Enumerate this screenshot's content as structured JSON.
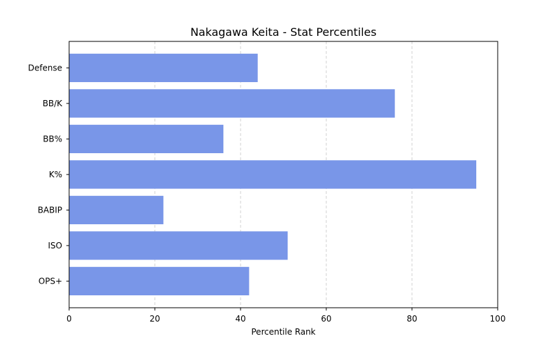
{
  "chart_data": {
    "type": "bar",
    "orientation": "horizontal",
    "title": "Nakagawa Keita - Stat Percentiles",
    "xlabel": "Percentile Rank",
    "ylabel": "",
    "categories": [
      "OPS+",
      "ISO",
      "BABIP",
      "K%",
      "BB%",
      "BB/K",
      "Defense"
    ],
    "values": [
      42,
      51,
      22,
      95,
      36,
      76,
      44
    ],
    "xlim": [
      0,
      100
    ],
    "xticks": [
      0,
      20,
      40,
      60,
      80,
      100
    ],
    "grid": "x-dashed",
    "bar_color": "#7996e8"
  }
}
